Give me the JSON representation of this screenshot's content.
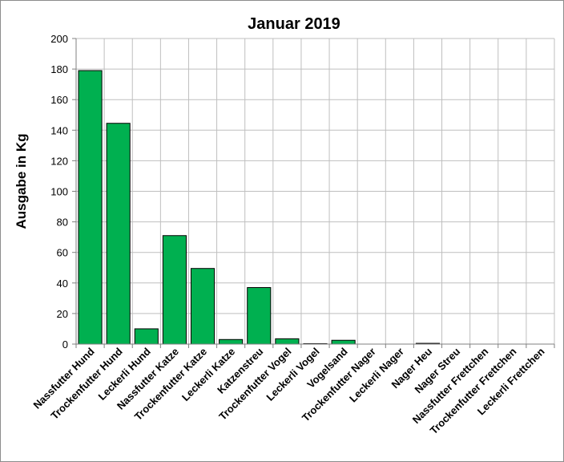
{
  "chart_data": {
    "type": "bar",
    "title": "Januar 2019",
    "xlabel": "",
    "ylabel": "Ausgabe in Kg",
    "ylim": [
      0,
      200
    ],
    "yticks": [
      "0",
      "20",
      "40",
      "60",
      "80",
      "100",
      "120",
      "140",
      "160",
      "180",
      "200"
    ],
    "grid": true,
    "bar_color": "#00b050",
    "categories": [
      "Nassfutter Hund",
      "Trockenfutter Hund",
      "Leckerli Hund",
      "Nassfutter Katze",
      "Trockenfutter Katze",
      "Leckerli Katze",
      "Katzenstreu",
      "Trockenfutter Vogel",
      "Leckerli Vogel",
      "Vogelsand",
      "Trockenfutter Nager",
      "Leckerli Nager",
      "Nager Heu",
      "Nager Streu",
      "Nassfutter Frettchen",
      "Trockenfutter Frettchen",
      "Leckerli Frettchen"
    ],
    "values": [
      179,
      144.5,
      10,
      71,
      49.5,
      3,
      37,
      3.5,
      0.3,
      2.5,
      0,
      0,
      0.5,
      0,
      0,
      0,
      0
    ]
  }
}
